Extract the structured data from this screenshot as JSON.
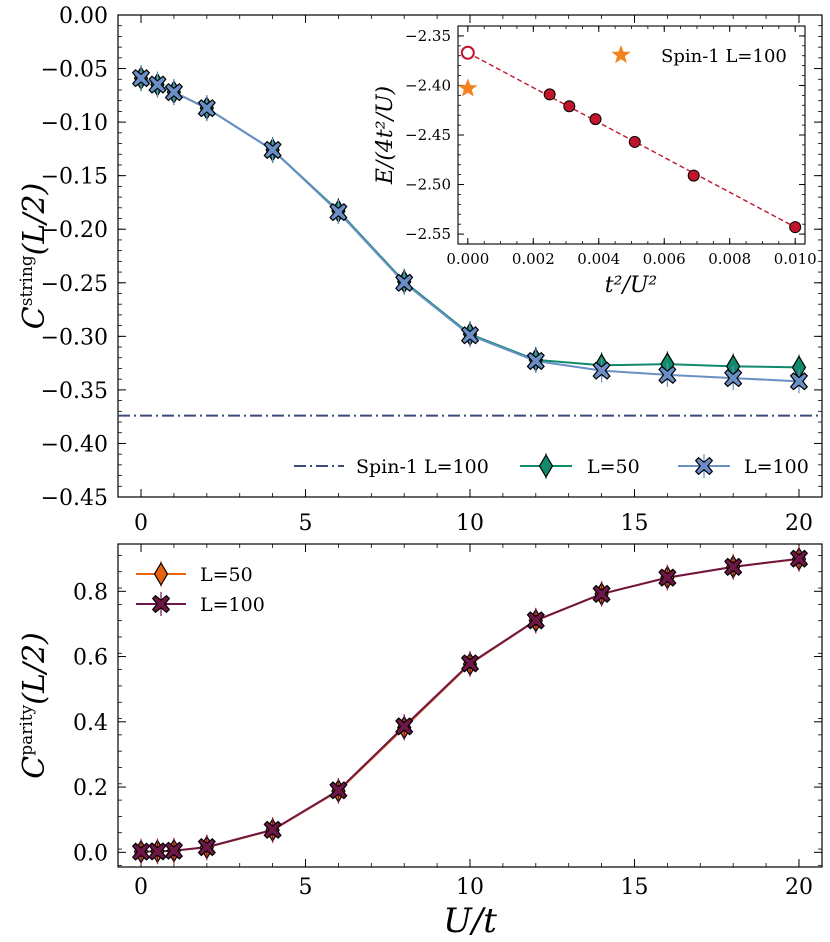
{
  "chart_data": [
    {
      "id": "top",
      "type": "line",
      "ylabel_main": "C",
      "ylabel_sup": "string",
      "ylabel_tail": "(L/2)",
      "xlim": [
        -0.7,
        20.7
      ],
      "ylim": [
        -0.45,
        0.0
      ],
      "xticks": [
        0,
        5,
        10,
        15,
        20
      ],
      "xtick_labels": [
        "0",
        "5",
        "10",
        "15",
        "20"
      ],
      "yticks": [
        0.0,
        -0.05,
        -0.1,
        -0.15,
        -0.2,
        -0.25,
        -0.3,
        -0.35,
        -0.4,
        -0.45
      ],
      "ytick_labels": [
        "0.00",
        "−0.05",
        "−0.10",
        "−0.15",
        "−0.20",
        "−0.25",
        "−0.30",
        "−0.35",
        "−0.40",
        "−0.45"
      ],
      "hline": {
        "label": "Spin-1 L=100",
        "y": -0.374,
        "color": "#3b4a7a"
      },
      "series": [
        {
          "name": "L=50",
          "marker": "diamond",
          "color": "#0f8a6b",
          "x": [
            0,
            0.5,
            1,
            2,
            4,
            6,
            8,
            10,
            12,
            14,
            16,
            18,
            20
          ],
          "y": [
            -0.059,
            -0.065,
            -0.072,
            -0.087,
            -0.126,
            -0.183,
            -0.249,
            -0.298,
            -0.322,
            -0.327,
            -0.326,
            -0.328,
            -0.329
          ]
        },
        {
          "name": "L=100",
          "marker": "x",
          "color": "#6a8fc7",
          "x": [
            0,
            0.5,
            1,
            2,
            4,
            6,
            8,
            10,
            12,
            14,
            16,
            18,
            20
          ],
          "y": [
            -0.059,
            -0.065,
            -0.072,
            -0.087,
            -0.126,
            -0.184,
            -0.25,
            -0.299,
            -0.323,
            -0.332,
            -0.336,
            -0.339,
            -0.342
          ]
        }
      ],
      "legend": [
        "Spin-1 L=100",
        "L=50",
        "L=100"
      ],
      "legend_position": "lower-right"
    },
    {
      "id": "inset",
      "type": "scatter",
      "xlabel": "t²/U²",
      "ylabel": "E/(4t²/U)",
      "xlim": [
        -0.0003,
        0.0103
      ],
      "ylim": [
        -2.56,
        -2.34
      ],
      "xticks": [
        0.0,
        0.002,
        0.004,
        0.006,
        0.008,
        0.01
      ],
      "xtick_labels": [
        "0.000",
        "0.002",
        "0.004",
        "0.006",
        "0.008",
        "0.010"
      ],
      "yticks": [
        -2.35,
        -2.4,
        -2.45,
        -2.5,
        -2.55
      ],
      "ytick_labels": [
        "−2.35",
        "−2.40",
        "−2.45",
        "−2.50",
        "−2.55"
      ],
      "points": {
        "x": [
          0.0025,
          0.0031,
          0.0039,
          0.0051,
          0.0069,
          0.01
        ],
        "y": [
          -2.409,
          -2.421,
          -2.434,
          -2.457,
          -2.491,
          -2.543
        ],
        "color": "#c0162c"
      },
      "fit": {
        "x": [
          0.0,
          0.01
        ],
        "y": [
          -2.367,
          -2.543
        ]
      },
      "extrapolated": {
        "x": 0.0,
        "y": -2.367
      },
      "spin1": {
        "label": "Spin-1 L=100",
        "x": 0.0,
        "y": -2.403,
        "color": "#f5821f"
      }
    },
    {
      "id": "bottom",
      "type": "line",
      "xlabel": "U/t",
      "ylabel_main": "C",
      "ylabel_sup": "parity",
      "ylabel_tail": "(L/2)",
      "xlim": [
        -0.7,
        20.7
      ],
      "ylim": [
        -0.045,
        0.945
      ],
      "xticks": [
        0,
        5,
        10,
        15,
        20
      ],
      "xtick_labels": [
        "0",
        "5",
        "10",
        "15",
        "20"
      ],
      "yticks": [
        0.0,
        0.2,
        0.4,
        0.6,
        0.8
      ],
      "ytick_labels": [
        "0.0",
        "0.2",
        "0.4",
        "0.6",
        "0.8"
      ],
      "series": [
        {
          "name": "L=50",
          "marker": "diamond",
          "color": "#e8620f",
          "x": [
            0,
            0.5,
            1,
            2,
            4,
            6,
            8,
            10,
            12,
            14,
            16,
            18,
            20
          ],
          "y": [
            0.002,
            0.003,
            0.005,
            0.015,
            0.068,
            0.188,
            0.382,
            0.577,
            0.71,
            0.792,
            0.842,
            0.875,
            0.899
          ]
        },
        {
          "name": "L=100",
          "marker": "x",
          "color": "#6e1646",
          "x": [
            0,
            0.5,
            1,
            2,
            4,
            6,
            8,
            10,
            12,
            14,
            16,
            18,
            20
          ],
          "y": [
            0.002,
            0.003,
            0.005,
            0.016,
            0.069,
            0.19,
            0.386,
            0.579,
            0.711,
            0.792,
            0.842,
            0.875,
            0.9
          ]
        }
      ],
      "legend": [
        "L=50",
        "L=100"
      ],
      "legend_position": "upper-left"
    }
  ]
}
